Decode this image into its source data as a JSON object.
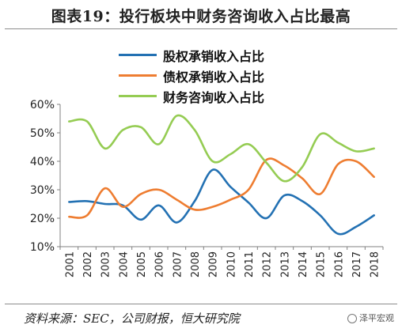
{
  "title": "图表19：投行板块中财务咨询收入占比最高",
  "source": "资料来源：SEC，公司财报，恒大研究院",
  "watermark": "泽平宏观",
  "chart_data": {
    "type": "line",
    "title": "图表19：投行板块中财务咨询收入占比最高",
    "xlabel": "",
    "ylabel": "",
    "categories": [
      "2001",
      "2002",
      "2003",
      "2004",
      "2005",
      "2006",
      "2007",
      "2008",
      "2009",
      "2010",
      "2011",
      "2012",
      "2013",
      "2014",
      "2015",
      "2016",
      "2017",
      "2018"
    ],
    "ylim": [
      0.1,
      0.6
    ],
    "yticks": [
      "10%",
      "20%",
      "30%",
      "40%",
      "50%",
      "60%"
    ],
    "legend_position": "top",
    "grid": false,
    "series": [
      {
        "name": "股权承销收入占比",
        "color": "#2371b3",
        "values": [
          0.257,
          0.26,
          0.25,
          0.245,
          0.195,
          0.245,
          0.185,
          0.26,
          0.37,
          0.31,
          0.255,
          0.2,
          0.28,
          0.26,
          0.21,
          0.145,
          0.17,
          0.21
        ]
      },
      {
        "name": "债权承销收入占比",
        "color": "#ee7d31",
        "values": [
          0.205,
          0.21,
          0.305,
          0.24,
          0.285,
          0.3,
          0.265,
          0.23,
          0.24,
          0.265,
          0.3,
          0.405,
          0.385,
          0.34,
          0.285,
          0.39,
          0.4,
          0.345
        ]
      },
      {
        "name": "财务咨询收入占比",
        "color": "#95cc53",
        "values": [
          0.54,
          0.54,
          0.445,
          0.51,
          0.52,
          0.46,
          0.56,
          0.51,
          0.4,
          0.425,
          0.46,
          0.395,
          0.33,
          0.38,
          0.495,
          0.465,
          0.435,
          0.445
        ]
      }
    ]
  }
}
